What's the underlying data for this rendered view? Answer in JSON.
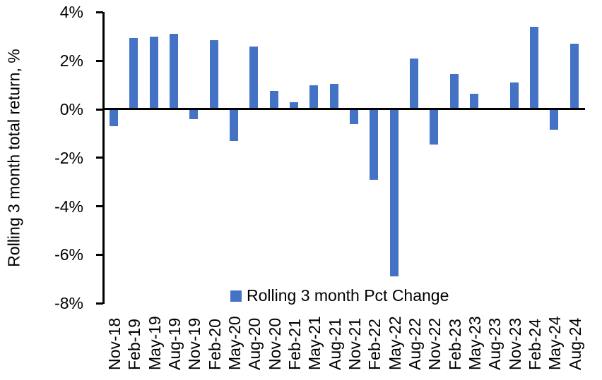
{
  "chart_data": {
    "type": "bar",
    "title": "",
    "xlabel": "",
    "ylabel": "Rolling 3 month total return, %",
    "legend": [
      "Rolling 3 month Pct Change"
    ],
    "legend_position": "bottom-center-inside-plot",
    "grid": false,
    "bar_color": "#4472C4",
    "axis_color": "#000000",
    "ylim": [
      -8,
      4
    ],
    "yticks": [
      4,
      2,
      0,
      -2,
      -4,
      -6,
      -8
    ],
    "ytick_labels": [
      "4%",
      "2%",
      "0%",
      "-2%",
      "-4%",
      "-6%",
      "-8%"
    ],
    "categories": [
      "Nov-18",
      "Feb-19",
      "May-19",
      "Aug-19",
      "Nov-19",
      "Feb-20",
      "May-20",
      "Aug-20",
      "Nov-20",
      "Feb-21",
      "May-21",
      "Aug-21",
      "Nov-21",
      "Feb-22",
      "May-22",
      "Aug-22",
      "Nov-22",
      "Feb-23",
      "May-23",
      "Aug-23",
      "Nov-23",
      "Feb-24",
      "May-24",
      "Aug-24"
    ],
    "values": [
      -0.7,
      2.95,
      3.0,
      3.1,
      -0.4,
      2.85,
      -1.3,
      2.6,
      0.75,
      0.3,
      1.0,
      1.05,
      -0.6,
      -2.9,
      -6.9,
      2.1,
      -1.45,
      1.45,
      0.65,
      0,
      1.1,
      3.4,
      -0.85,
      2.7
    ]
  }
}
